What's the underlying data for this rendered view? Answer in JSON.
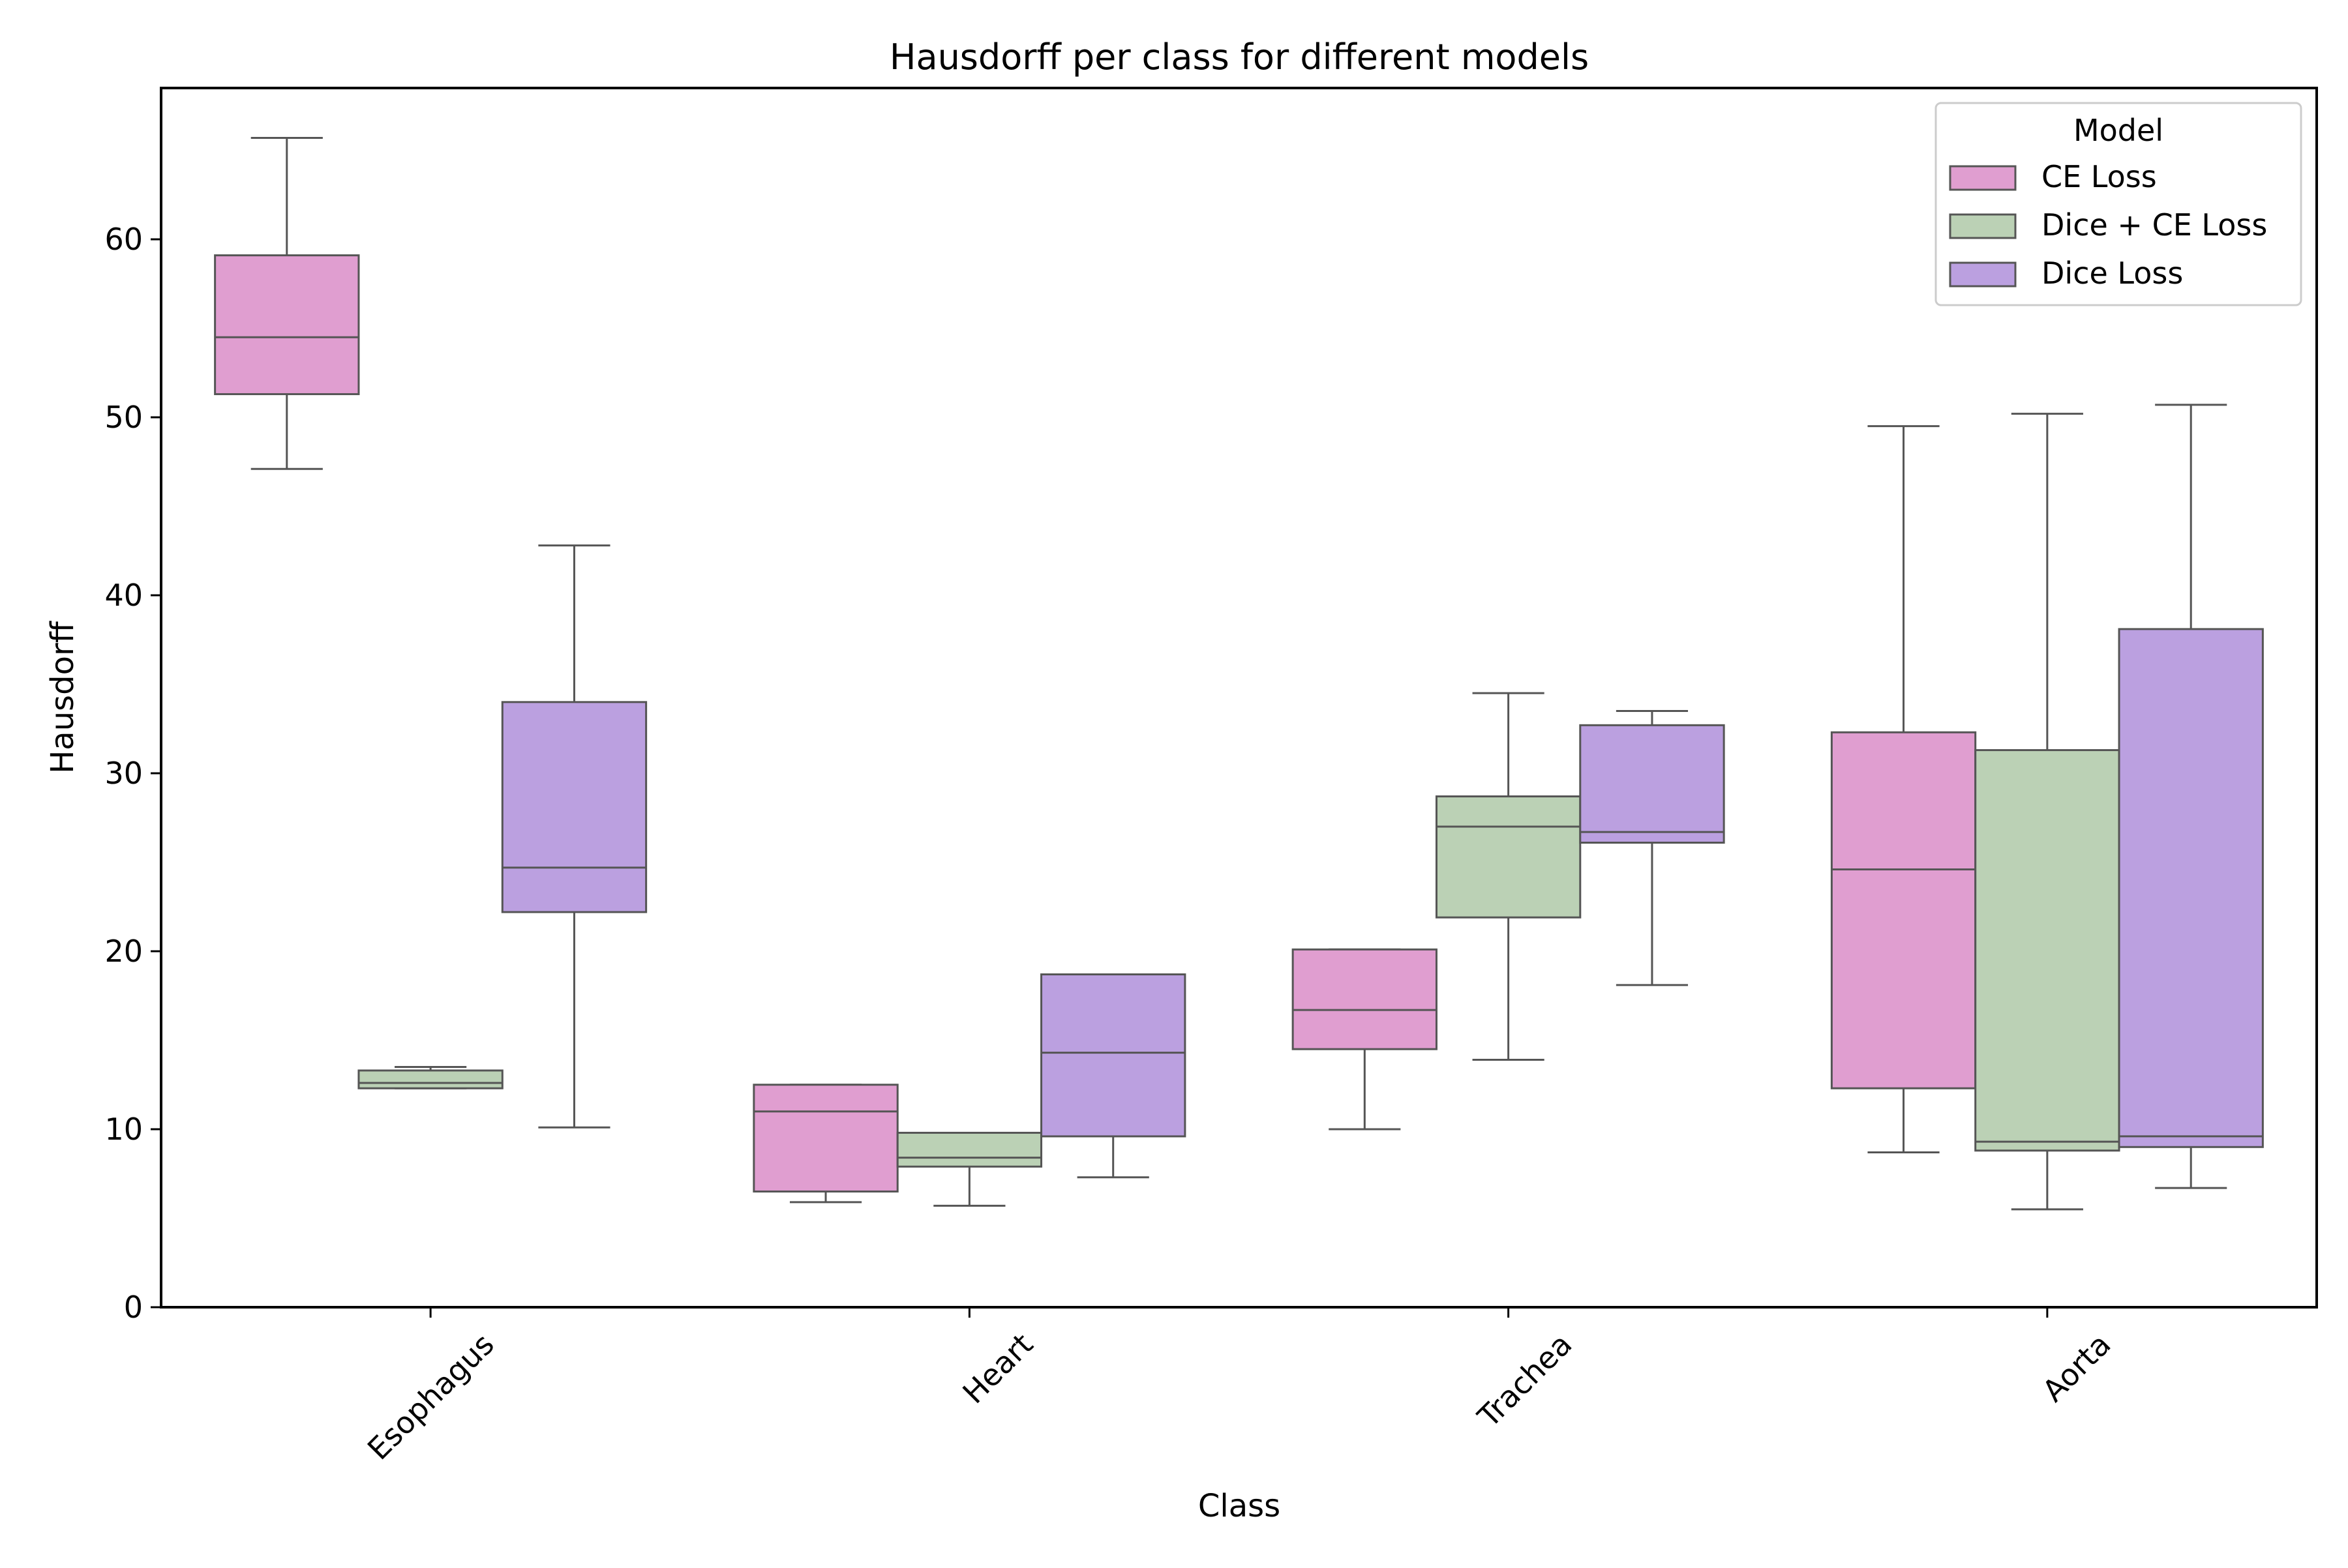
{
  "chart_data": {
    "type": "box",
    "title": "Hausdorff per class for different models",
    "xlabel": "Class",
    "ylabel": "Hausdorff",
    "ylim": [
      0,
      68.5
    ],
    "yticks": [
      0,
      10,
      20,
      30,
      40,
      50,
      60
    ],
    "categories": [
      "Esophagus",
      "Heart",
      "Trachea",
      "Aorta"
    ],
    "legend": {
      "title": "Model",
      "placement": "top-right"
    },
    "grid": false,
    "series": [
      {
        "name": "CE Loss",
        "color": "#e09ed0",
        "boxes": [
          {
            "whisker_low": 47.1,
            "q1": 51.3,
            "median": 54.5,
            "q3": 59.1,
            "whisker_high": 65.7
          },
          {
            "whisker_low": 5.9,
            "q1": 6.5,
            "median": 11.0,
            "q3": 12.5,
            "whisker_high": 12.5
          },
          {
            "whisker_low": 10.0,
            "q1": 14.5,
            "median": 16.7,
            "q3": 20.1,
            "whisker_high": 20.1
          },
          {
            "whisker_low": 8.7,
            "q1": 12.3,
            "median": 24.6,
            "q3": 32.3,
            "whisker_high": 49.5
          }
        ]
      },
      {
        "name": "Dice + CE Loss",
        "color": "#bbd1b5",
        "boxes": [
          {
            "whisker_low": 12.3,
            "q1": 12.3,
            "median": 12.6,
            "q3": 13.3,
            "whisker_high": 13.5
          },
          {
            "whisker_low": 5.7,
            "q1": 7.9,
            "median": 8.4,
            "q3": 9.8,
            "whisker_high": 9.8
          },
          {
            "whisker_low": 13.9,
            "q1": 21.9,
            "median": 27.0,
            "q3": 28.7,
            "whisker_high": 34.5
          },
          {
            "whisker_low": 5.5,
            "q1": 8.8,
            "median": 9.3,
            "q3": 31.3,
            "whisker_high": 50.2
          }
        ]
      },
      {
        "name": "Dice Loss",
        "color": "#bba0e0",
        "boxes": [
          {
            "whisker_low": 10.1,
            "q1": 22.2,
            "median": 24.7,
            "q3": 34.0,
            "whisker_high": 42.8
          },
          {
            "whisker_low": 7.3,
            "q1": 9.6,
            "median": 14.3,
            "q3": 18.7,
            "whisker_high": 18.7
          },
          {
            "whisker_low": 18.1,
            "q1": 26.1,
            "median": 26.7,
            "q3": 32.7,
            "whisker_high": 33.5
          },
          {
            "whisker_low": 6.7,
            "q1": 9.0,
            "median": 9.6,
            "q3": 38.1,
            "whisker_high": 50.7
          }
        ]
      }
    ],
    "line_color": "#555555"
  }
}
